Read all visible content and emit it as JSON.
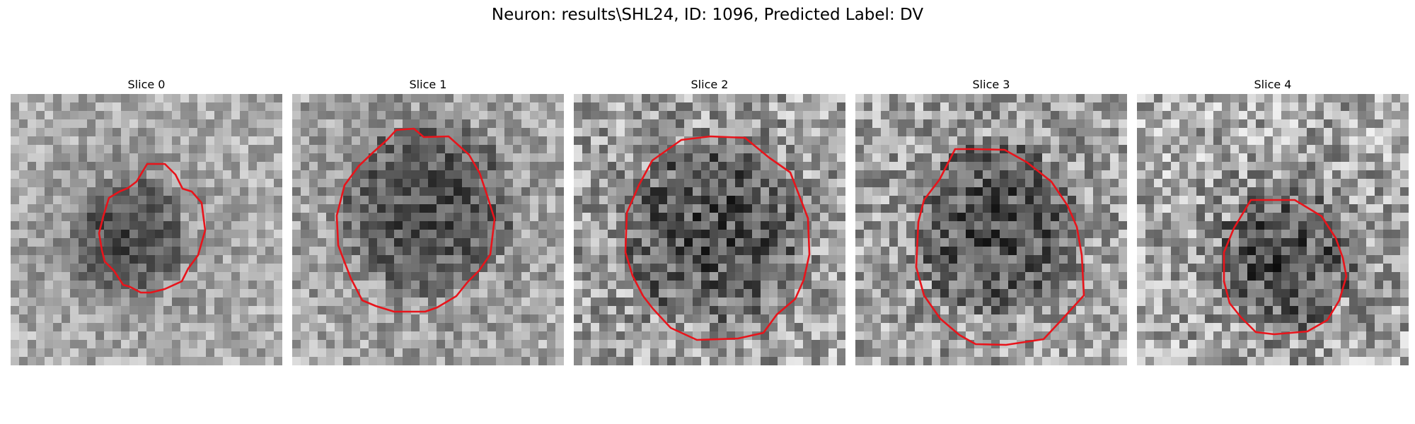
{
  "figure": {
    "title": "Neuron: results\\SHL24, ID: 1096, Predicted Label: DV"
  },
  "panels": [
    {
      "title": "Slice 0"
    },
    {
      "title": "Slice 1"
    },
    {
      "title": "Slice 2"
    },
    {
      "title": "Slice 3"
    },
    {
      "title": "Slice 4"
    }
  ],
  "style": {
    "contour_color": "#e8141b"
  }
}
